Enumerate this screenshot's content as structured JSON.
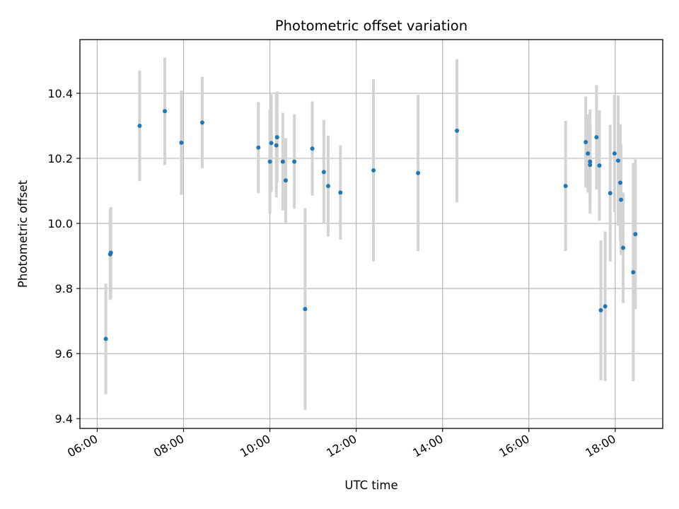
{
  "chart_data": {
    "type": "scatter",
    "title": "Photometric offset variation",
    "xlabel": "UTC time",
    "ylabel": "Photometric offset",
    "x_ticks": [
      "06:00",
      "08:00",
      "10:00",
      "12:00",
      "14:00",
      "16:00",
      "18:00"
    ],
    "y_ticks": [
      "9.4",
      "9.6",
      "9.8",
      "10.0",
      "10.2",
      "10.4"
    ],
    "xlim": [
      "05:36",
      "19:06"
    ],
    "ylim": [
      9.37,
      10.565
    ],
    "grid": true,
    "colors": {
      "point": "#1f77b4",
      "errorbar": "#d3d3d3",
      "grid": "#b0b0b0"
    },
    "points": [
      {
        "x": "06:12",
        "y": 9.645,
        "err": 0.17
      },
      {
        "x": "06:18",
        "y": 9.905,
        "err": 0.14
      },
      {
        "x": "06:19",
        "y": 9.91,
        "err": 0.14
      },
      {
        "x": "06:59",
        "y": 10.3,
        "err": 0.17
      },
      {
        "x": "07:34",
        "y": 10.345,
        "err": 0.165
      },
      {
        "x": "07:57",
        "y": 10.248,
        "err": 0.16
      },
      {
        "x": "08:26",
        "y": 10.31,
        "err": 0.14
      },
      {
        "x": "09:44",
        "y": 10.233,
        "err": 0.14
      },
      {
        "x": "10:00",
        "y": 10.19,
        "err": 0.16
      },
      {
        "x": "10:02",
        "y": 10.247,
        "err": 0.15
      },
      {
        "x": "10:09",
        "y": 10.24,
        "err": 0.16
      },
      {
        "x": "10:10",
        "y": 10.265,
        "err": 0.14
      },
      {
        "x": "10:18",
        "y": 10.19,
        "err": 0.15
      },
      {
        "x": "10:22",
        "y": 10.132,
        "err": 0.13
      },
      {
        "x": "10:34",
        "y": 10.19,
        "err": 0.145
      },
      {
        "x": "10:49",
        "y": 9.737,
        "err": 0.31
      },
      {
        "x": "10:59",
        "y": 10.23,
        "err": 0.145
      },
      {
        "x": "11:15",
        "y": 10.158,
        "err": 0.16
      },
      {
        "x": "11:21",
        "y": 10.115,
        "err": 0.155
      },
      {
        "x": "11:38",
        "y": 10.095,
        "err": 0.145
      },
      {
        "x": "12:24",
        "y": 10.163,
        "err": 0.28
      },
      {
        "x": "13:26",
        "y": 10.155,
        "err": 0.24
      },
      {
        "x": "14:20",
        "y": 10.285,
        "err": 0.22
      },
      {
        "x": "16:51",
        "y": 10.115,
        "err": 0.2
      },
      {
        "x": "17:19",
        "y": 10.25,
        "err": 0.14
      },
      {
        "x": "17:22",
        "y": 10.215,
        "err": 0.12
      },
      {
        "x": "17:25",
        "y": 10.18,
        "err": 0.13
      },
      {
        "x": "17:25",
        "y": 10.19,
        "err": 0.16
      },
      {
        "x": "17:34",
        "y": 10.265,
        "err": 0.16
      },
      {
        "x": "17:38",
        "y": 10.178,
        "err": 0.17
      },
      {
        "x": "17:40",
        "y": 9.733,
        "err": 0.215
      },
      {
        "x": "17:46",
        "y": 9.745,
        "err": 0.23
      },
      {
        "x": "17:53",
        "y": 10.093,
        "err": 0.21
      },
      {
        "x": "17:59",
        "y": 10.215,
        "err": 0.18
      },
      {
        "x": "18:04",
        "y": 10.193,
        "err": 0.2
      },
      {
        "x": "18:07",
        "y": 10.125,
        "err": 0.18
      },
      {
        "x": "18:08",
        "y": 10.073,
        "err": 0.17
      },
      {
        "x": "18:11",
        "y": 9.925,
        "err": 0.17
      },
      {
        "x": "18:25",
        "y": 9.85,
        "err": 0.335
      },
      {
        "x": "18:28",
        "y": 9.967,
        "err": 0.23
      }
    ]
  }
}
